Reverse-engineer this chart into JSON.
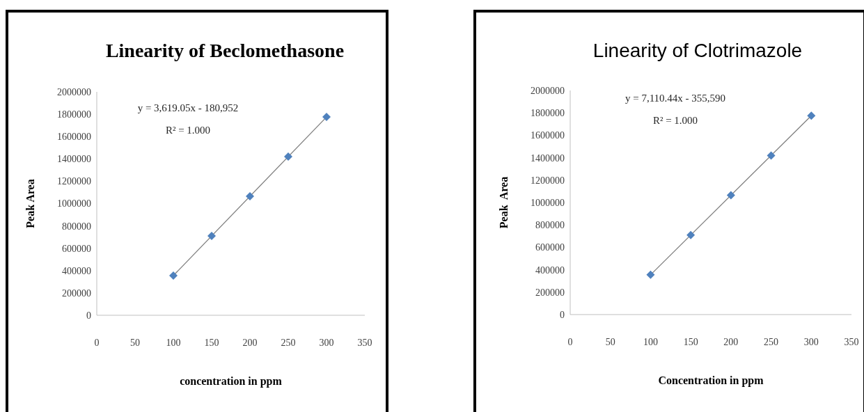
{
  "chart_data": [
    {
      "type": "scatter",
      "title": "Linearity of Beclomethasone",
      "xlabel": "concentration in ppm",
      "ylabel": "Peak Area",
      "annotations": [
        "y = 3,619.05x - 180,952",
        "R² = 1.000"
      ],
      "xlim": [
        0,
        350
      ],
      "xticks": [
        0,
        50,
        100,
        150,
        200,
        250,
        300,
        350
      ],
      "ylim": [
        0,
        2000000
      ],
      "yticks": [
        0,
        200000,
        400000,
        600000,
        800000,
        1000000,
        1200000,
        1400000,
        1600000,
        1800000,
        2000000
      ],
      "grid": false,
      "series": [
        {
          "color": "#4f81bd",
          "marker": "diamond",
          "x": [
            100,
            150,
            200,
            250,
            300
          ],
          "values": [
            355000,
            710000,
            1065000,
            1420000,
            1775000
          ]
        },
        {
          "type": "line",
          "color": "#7f7f7f",
          "line_style": "solid",
          "x": [
            100,
            300
          ],
          "values": [
            355000,
            1775000
          ]
        }
      ]
    },
    {
      "type": "scatter",
      "title": "Linearity of Clotrimazole",
      "xlabel": "Concentration in ppm",
      "ylabel": "Peak  Area",
      "annotations": [
        "y = 7,110.44x - 355,590",
        "R² = 1.000"
      ],
      "xlim": [
        0,
        350
      ],
      "xticks": [
        0,
        50,
        100,
        150,
        200,
        250,
        300,
        350
      ],
      "ylim": [
        0,
        2000000
      ],
      "yticks": [
        0,
        200000,
        400000,
        600000,
        800000,
        1000000,
        1200000,
        1400000,
        1600000,
        1800000,
        2000000
      ],
      "grid": false,
      "series": [
        {
          "color": "#4f81bd",
          "marker": "diamond",
          "x": [
            100,
            150,
            200,
            250,
            300
          ],
          "values": [
            355000,
            710000,
            1065000,
            1420000,
            1775000
          ]
        },
        {
          "type": "line",
          "color": "#7f7f7f",
          "line_style": "solid",
          "x": [
            100,
            300
          ],
          "values": [
            355000,
            1775000
          ]
        }
      ]
    }
  ]
}
